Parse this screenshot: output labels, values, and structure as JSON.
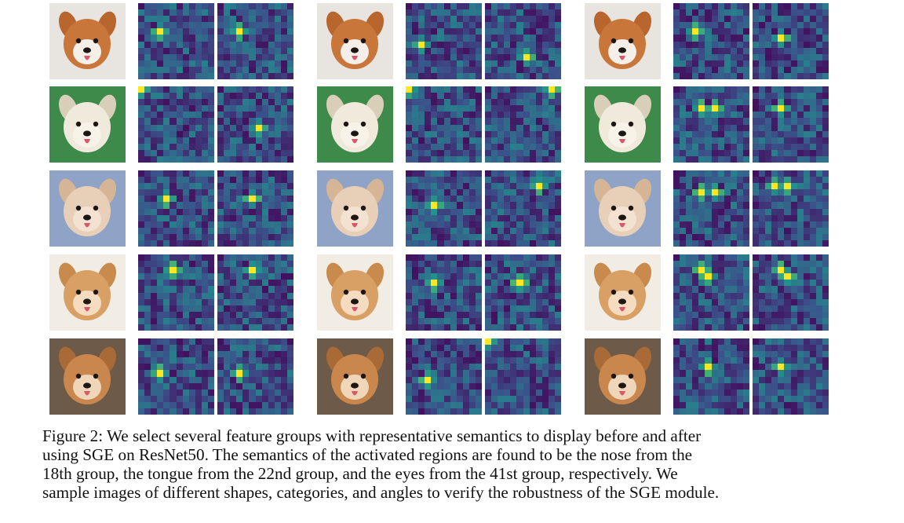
{
  "figure": {
    "caption_lines": [
      "Figure 2: We select several feature groups with representative semantics to display before and after",
      "using SGE on ResNet50. The semantics of the activated regions are found to be the nose from the",
      "18th group, the tongue from the 22nd group, and the eyes from the 41st group, respectively.  We",
      "sample images of different shapes, categories, and angles to verify the robustness of the SGE module."
    ],
    "colors": {
      "heat_low": "#440a5e",
      "heat_mid": "#2b7d8e",
      "heat_high": "#fde725",
      "heat_mid2": "#35b779"
    },
    "rows": [
      {
        "photo": "dog-photo-corgi"
      },
      {
        "photo": "dog-photo-white-puppy"
      },
      {
        "photo": "dog-photo-cream-puppy"
      },
      {
        "photo": "dog-photo-tan-puppy"
      },
      {
        "photo": "dog-photo-shiba-lying"
      }
    ]
  }
}
